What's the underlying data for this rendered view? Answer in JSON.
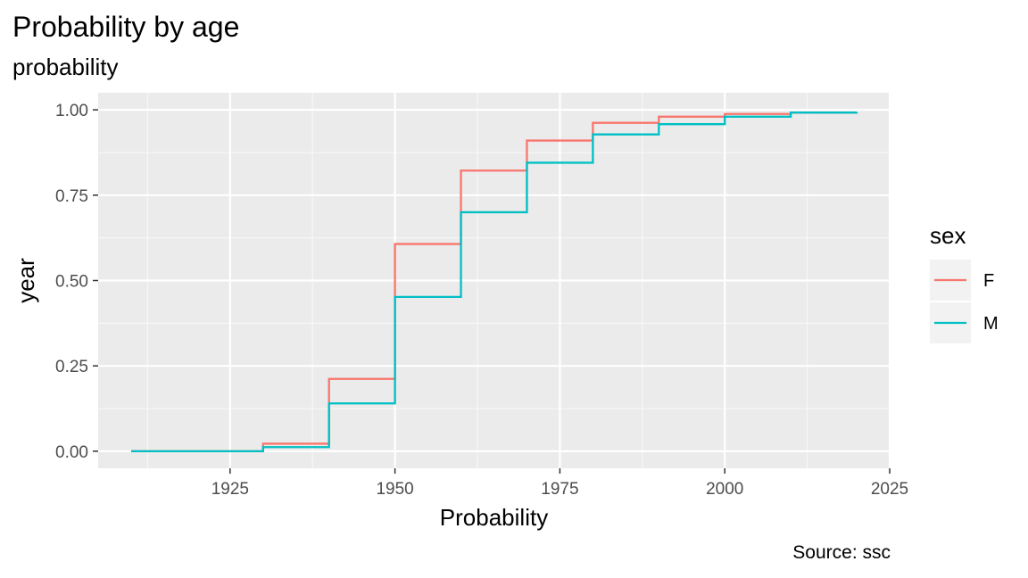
{
  "chart_data": {
    "type": "line",
    "step": true,
    "title": "Probability by age",
    "subtitle": "probability",
    "caption": "Source: ssc",
    "xlabel": "Probability",
    "ylabel": "year",
    "xlim": [
      1905,
      2025
    ],
    "ylim": [
      -0.05,
      1.05
    ],
    "x_ticks": [
      1925,
      1950,
      1975,
      2000,
      2025
    ],
    "x_tick_labels": [
      "1925",
      "1950",
      "1975",
      "2000",
      "2025"
    ],
    "y_ticks": [
      0,
      0.25,
      0.5,
      0.75,
      1.0
    ],
    "y_tick_labels": [
      "0.00",
      "0.25",
      "0.50",
      "0.75",
      "1.00"
    ],
    "grid": true,
    "legend": {
      "title": "sex",
      "position": "right"
    },
    "x": [
      1910,
      1920,
      1930,
      1940,
      1950,
      1960,
      1970,
      1980,
      1990,
      2000,
      2010,
      2020
    ],
    "series": [
      {
        "name": "F",
        "color": "#F8766D",
        "values": [
          0.0,
          0.0,
          0.022,
          0.212,
          0.607,
          0.822,
          0.91,
          0.962,
          0.98,
          0.988,
          0.992,
          0.993
        ]
      },
      {
        "name": "M",
        "color": "#00BFC4",
        "values": [
          0.0,
          0.0,
          0.012,
          0.14,
          0.452,
          0.7,
          0.845,
          0.928,
          0.958,
          0.98,
          0.992,
          0.993
        ]
      }
    ]
  }
}
